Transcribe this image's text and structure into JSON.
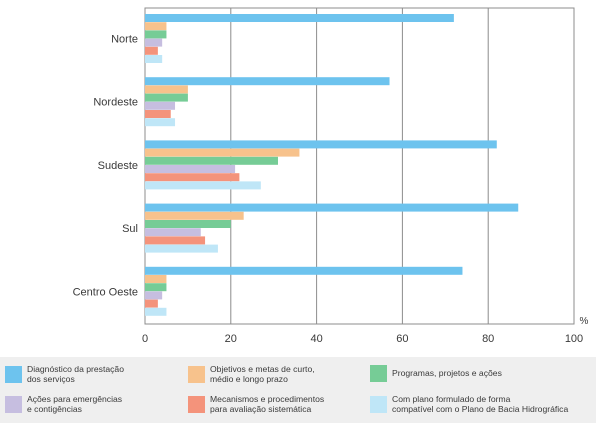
{
  "chart_data": {
    "type": "bar",
    "orientation": "horizontal",
    "categories": [
      "Norte",
      "Nordeste",
      "Sudeste",
      "Sul",
      "Centro Oeste"
    ],
    "series": [
      {
        "name": "Diagnóstico da prestação\ndos serviços",
        "color": "#6dc3ee",
        "values": [
          72,
          57,
          82,
          87,
          74
        ]
      },
      {
        "name": "Objetivos e metas de curto,\nmédio e longo prazo",
        "color": "#f7c28c",
        "values": [
          5,
          10,
          36,
          23,
          5
        ]
      },
      {
        "name": "Programas, projetos e ações",
        "color": "#76cc96",
        "values": [
          5,
          10,
          31,
          20,
          5
        ]
      },
      {
        "name": "Ações para emergências\ne contigências",
        "color": "#c6bee0",
        "values": [
          4,
          7,
          21,
          13,
          4
        ]
      },
      {
        "name": "Mecanismos e procedimentos\npara avaliação sistemática",
        "color": "#f4937b",
        "values": [
          3,
          6,
          22,
          14,
          3
        ]
      },
      {
        "name": "Com plano formulado de forma\ncompatível com o Plano de Bacia Hidrográfica",
        "color": "#bfe6f7",
        "values": [
          4,
          7,
          27,
          17,
          5
        ]
      }
    ],
    "x_ticks": [
      "0",
      "20",
      "40",
      "60",
      "80",
      "100"
    ],
    "xlim": [
      0,
      100
    ],
    "unit_label": "%",
    "grid": true,
    "legend_position": "bottom"
  }
}
